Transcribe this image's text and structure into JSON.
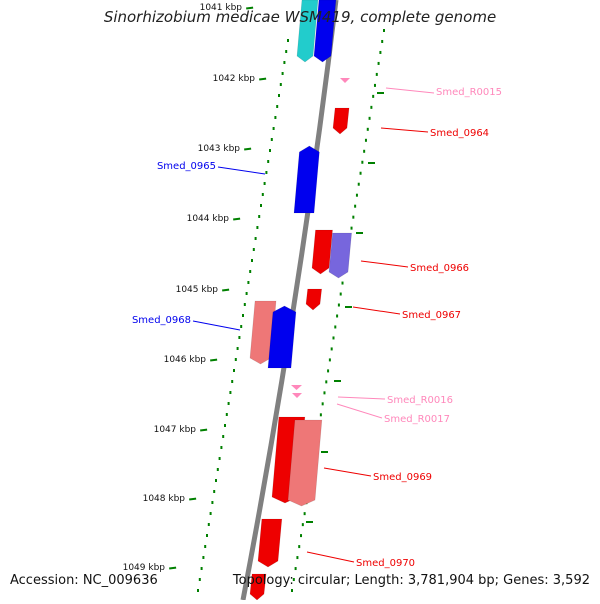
{
  "title": "Sinorhizobium medicae WSM419, complete genome",
  "footer": {
    "accession": "Accession: NC_009636",
    "topology": "Topology: circular; Length: 3,781,904 bp; Genes: 3,592"
  },
  "colors": {
    "backbone": "#808080",
    "tick": "#008000",
    "forward_gene": "#0000ee",
    "reverse_gene": "#ee0000",
    "rna": "#ff88bb",
    "light_forward": "#7766dd",
    "light_reverse": "#ee7777",
    "cyan": "#22cccc"
  },
  "scale_labels": [
    "1041 kbp",
    "1042 kbp",
    "1043 kbp",
    "1044 kbp",
    "1045 kbp",
    "1046 kbp",
    "1047 kbp",
    "1048 kbp",
    "1049 kbp"
  ],
  "gene_labels": [
    {
      "text": "Smed_R0015",
      "kind": "rna"
    },
    {
      "text": "Smed_0964",
      "kind": "reverse"
    },
    {
      "text": "Smed_0965",
      "kind": "forward"
    },
    {
      "text": "Smed_0966",
      "kind": "reverse"
    },
    {
      "text": "Smed_0967",
      "kind": "reverse"
    },
    {
      "text": "Smed_0968",
      "kind": "forward"
    },
    {
      "text": "Smed_R0016",
      "kind": "rna"
    },
    {
      "text": "Smed_R0017",
      "kind": "rna"
    },
    {
      "text": "Smed_0969",
      "kind": "reverse"
    },
    {
      "text": "Smed_0970",
      "kind": "reverse"
    }
  ]
}
